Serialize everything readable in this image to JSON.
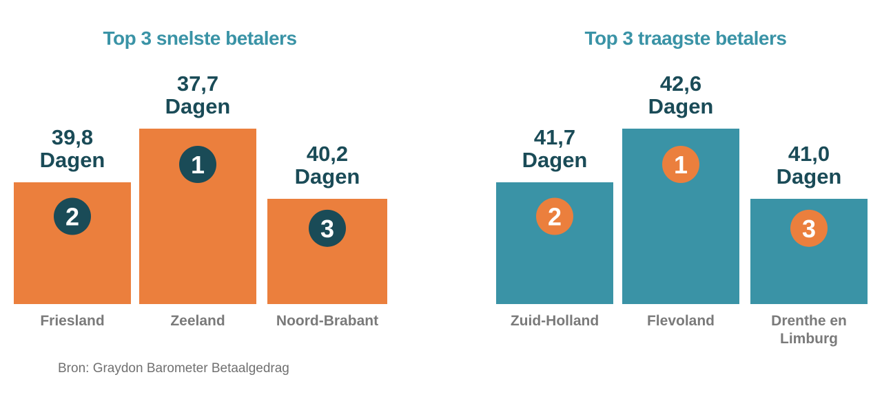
{
  "colors": {
    "title": "#3a93a6",
    "value_text": "#1a4b57",
    "category_text": "#7a7a7a",
    "source_text": "#707070",
    "white": "#ffffff"
  },
  "source": "Bron: Graydon Barometer Betaalgedrag",
  "chart_data": [
    {
      "type": "bar",
      "title": "Top 3 snelste betalers",
      "categories": [
        "Friesland",
        "Zeeland",
        "Noord-Brabant"
      ],
      "values": [
        39.8,
        37.7,
        40.2
      ],
      "value_labels": [
        "39,8",
        "37,7",
        "40,2"
      ],
      "unit": "Dagen",
      "ranks": [
        "2",
        "1",
        "3"
      ],
      "bar_color": "#eb7f3d",
      "badge_color": "#1a4b57"
    },
    {
      "type": "bar",
      "title": "Top 3 traagste betalers",
      "categories": [
        "Zuid-Holland",
        "Flevoland",
        "Drenthe en Limburg"
      ],
      "category_lines": [
        [
          "Zuid-Holland"
        ],
        [
          "Flevoland"
        ],
        [
          "Drenthe en",
          "Limburg"
        ]
      ],
      "values": [
        41.7,
        42.6,
        41.0
      ],
      "value_labels": [
        "41,7",
        "42,6",
        "41,0"
      ],
      "unit": "Dagen",
      "ranks": [
        "2",
        "1",
        "3"
      ],
      "bar_color": "#3a93a6",
      "badge_color": "#eb7f3d"
    }
  ]
}
